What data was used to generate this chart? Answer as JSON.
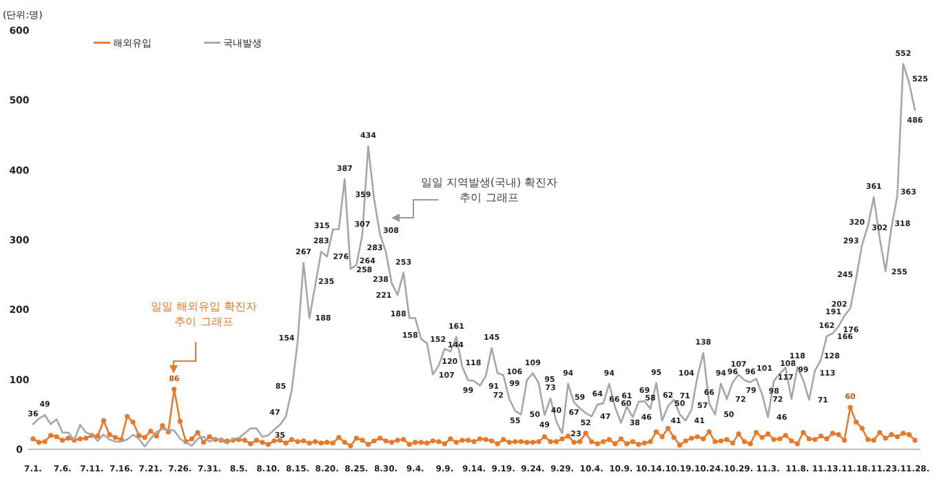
{
  "chart_data": {
    "type": "line",
    "ylabel": "(단위:명)",
    "ylim": [
      0,
      600
    ],
    "yticks": [
      0,
      100,
      200,
      300,
      400,
      500,
      600
    ],
    "legend": "top",
    "categories": [
      "7.1.",
      null,
      null,
      null,
      null,
      "7.6.",
      null,
      null,
      null,
      null,
      "7.11.",
      null,
      null,
      null,
      null,
      "7.16.",
      null,
      null,
      null,
      null,
      "7.21.",
      null,
      null,
      null,
      null,
      "7.26.",
      null,
      null,
      null,
      null,
      "7.31.",
      null,
      null,
      null,
      null,
      "8.5.",
      null,
      null,
      null,
      null,
      "8.10.",
      null,
      null,
      null,
      null,
      "8.15.",
      null,
      null,
      null,
      null,
      "8.20.",
      null,
      null,
      null,
      null,
      "8.25.",
      null,
      null,
      null,
      null,
      "8.30.",
      null,
      null,
      null,
      null,
      "9.4.",
      null,
      null,
      null,
      null,
      "9.9.",
      null,
      null,
      null,
      null,
      "9.14.",
      null,
      null,
      null,
      null,
      "9.19.",
      null,
      null,
      null,
      null,
      "9.24.",
      null,
      null,
      null,
      null,
      "9.29.",
      null,
      null,
      null,
      null,
      "10.4.",
      null,
      null,
      null,
      null,
      "10.9.",
      null,
      null,
      null,
      null,
      "10.14.",
      null,
      null,
      null,
      null,
      "10.19.",
      null,
      null,
      null,
      null,
      "10.24.",
      null,
      null,
      null,
      null,
      "10.29.",
      null,
      null,
      null,
      null,
      "11.3.",
      null,
      null,
      null,
      null,
      "11.8.",
      null,
      null,
      null,
      null,
      "11.13.",
      null,
      null,
      null,
      null,
      "11.18.",
      null,
      null,
      null,
      null,
      "11.23.",
      null,
      null,
      null,
      null,
      "11.28."
    ],
    "series": [
      {
        "name": "해외유입",
        "color": "#e8792a",
        "marker": "circle",
        "values": [
          15,
          10,
          11,
          20,
          18,
          13,
          16,
          13,
          15,
          16,
          20,
          19,
          41,
          21,
          17,
          14,
          47,
          39,
          20,
          17,
          26,
          19,
          34,
          25,
          86,
          40,
          11,
          15,
          24,
          10,
          18,
          14,
          13,
          12,
          13,
          14,
          13,
          8,
          13,
          10,
          7,
          12,
          13,
          9,
          14,
          11,
          12,
          9,
          11,
          9,
          10,
          9,
          17,
          10,
          5,
          16,
          13,
          7,
          12,
          16,
          12,
          10,
          13,
          14,
          7,
          10,
          10,
          9,
          12,
          11,
          8,
          15,
          10,
          13,
          13,
          11,
          15,
          14,
          12,
          8,
          14,
          10,
          11,
          11,
          10,
          10,
          11,
          18,
          11,
          11,
          15,
          19,
          10,
          11,
          23,
          11,
          8,
          11,
          14,
          8,
          15,
          8,
          11,
          7,
          9,
          11,
          25,
          18,
          30,
          17,
          6,
          12,
          16,
          18,
          15,
          25,
          11,
          12,
          14,
          9,
          22,
          11,
          8,
          24,
          17,
          22,
          14,
          15,
          20,
          12,
          8,
          24,
          15,
          14,
          19,
          15,
          23,
          21,
          13,
          60,
          39,
          30,
          14,
          13,
          24,
          16,
          21,
          18,
          23,
          21,
          13
        ],
        "value_labels": [
          null,
          null,
          null,
          null,
          null,
          null,
          null,
          null,
          null,
          null,
          null,
          null,
          null,
          null,
          null,
          null,
          null,
          null,
          null,
          null,
          null,
          null,
          null,
          null,
          "86",
          null,
          null,
          null,
          null,
          null,
          null,
          null,
          null,
          null,
          null,
          null,
          null,
          null,
          null,
          null,
          null,
          null,
          null,
          null,
          null,
          null,
          null,
          null,
          null,
          null,
          null,
          null,
          null,
          null,
          null,
          null,
          null,
          null,
          null,
          null,
          null,
          null,
          null,
          null,
          null,
          null,
          null,
          null,
          null,
          null,
          null,
          null,
          null,
          null,
          null,
          null,
          null,
          null,
          null,
          null,
          null,
          null,
          null,
          null,
          null,
          null,
          null,
          null,
          null,
          null,
          null,
          null,
          null,
          null,
          null,
          null,
          null,
          null,
          null,
          null,
          null,
          null,
          null,
          null,
          null,
          null,
          null,
          null,
          null,
          null,
          null,
          null,
          null,
          null,
          null,
          null,
          null,
          null,
          null,
          null,
          null,
          null,
          null,
          null,
          null,
          null,
          null,
          null,
          null,
          null,
          null,
          null,
          null,
          null,
          null,
          null,
          null,
          null,
          null,
          "60",
          null,
          null,
          null,
          null,
          null,
          null,
          null,
          null,
          null,
          null,
          null
        ]
      },
      {
        "name": "국내발생",
        "color": "#a6a6a6",
        "marker": "none",
        "values": [
          36,
          44,
          49,
          36,
          43,
          24,
          24,
          13,
          35,
          24,
          21,
          12,
          21,
          14,
          11,
          11,
          14,
          21,
          15,
          4,
          15,
          25,
          29,
          28,
          27,
          15,
          10,
          5,
          15,
          18,
          11,
          16,
          13,
          8,
          15,
          16,
          23,
          30,
          30,
          18,
          20,
          28,
          35,
          47,
          85,
          154,
          267,
          188,
          235,
          283,
          276,
          315,
          315,
          387,
          258,
          264,
          307,
          434,
          359,
          308,
          283,
          238,
          221,
          253,
          188,
          188,
          158,
          152,
          107,
          120,
          144,
          140,
          161,
          118,
          99,
          98,
          91,
          105,
          145,
          109,
          106,
          72,
          55,
          50,
          99,
          109,
          95,
          49,
          73,
          40,
          23,
          94,
          67,
          59,
          52,
          47,
          64,
          66,
          94,
          60,
          38,
          61,
          46,
          68,
          69,
          58,
          95,
          41,
          62,
          71,
          50,
          41,
          57,
          104,
          138,
          66,
          50,
          94,
          72,
          96,
          107,
          99,
          96,
          101,
          79,
          46,
          98,
          108,
          117,
          72,
          118,
          99,
          71,
          113,
          128,
          162,
          166,
          176,
          191,
          202,
          245,
          293,
          320,
          361,
          302,
          255,
          318,
          363,
          552,
          525,
          486
        ],
        "value_labels": [
          "36",
          null,
          "49",
          null,
          null,
          null,
          null,
          null,
          null,
          null,
          null,
          null,
          null,
          null,
          null,
          null,
          null,
          null,
          null,
          null,
          null,
          null,
          null,
          null,
          null,
          null,
          null,
          null,
          null,
          null,
          null,
          null,
          null,
          null,
          null,
          null,
          null,
          null,
          null,
          null,
          null,
          null,
          "35",
          "47",
          "85",
          "154",
          "267",
          "188",
          "235",
          "283",
          "276",
          "315",
          null,
          "387",
          "258",
          "264",
          "307",
          "434",
          "359",
          "308",
          "283",
          "238",
          "221",
          "253",
          "188",
          null,
          "158",
          "152",
          "107",
          "120",
          "144",
          null,
          "161",
          "118",
          "99",
          null,
          "91",
          null,
          "145",
          null,
          "106",
          "72",
          "55",
          "50",
          "99",
          "109",
          "95",
          "49",
          "73",
          "40",
          "23",
          "94",
          "67",
          "59",
          "52",
          "47",
          "64",
          "66",
          "94",
          "60",
          "38",
          "61",
          "46",
          null,
          "69",
          "58",
          "95",
          "41",
          "62",
          "71",
          "50",
          "41",
          "57",
          "104",
          "138",
          "66",
          "50",
          "94",
          "72",
          "96",
          "107",
          null,
          "96",
          "101",
          "79",
          "46",
          "98",
          "108",
          "117",
          "72",
          "118",
          "99",
          "71",
          "113",
          "128",
          "162",
          "166",
          "176",
          "191",
          "202",
          "245",
          "293",
          "320",
          "361",
          "302",
          "255",
          "318",
          "363",
          "552",
          "525",
          "486"
        ]
      }
    ],
    "annotations": [
      "일일 해외유입 확진자\n추이 그래프",
      "일일 지역발생(국내) 확진자\n추이 그래프"
    ]
  }
}
